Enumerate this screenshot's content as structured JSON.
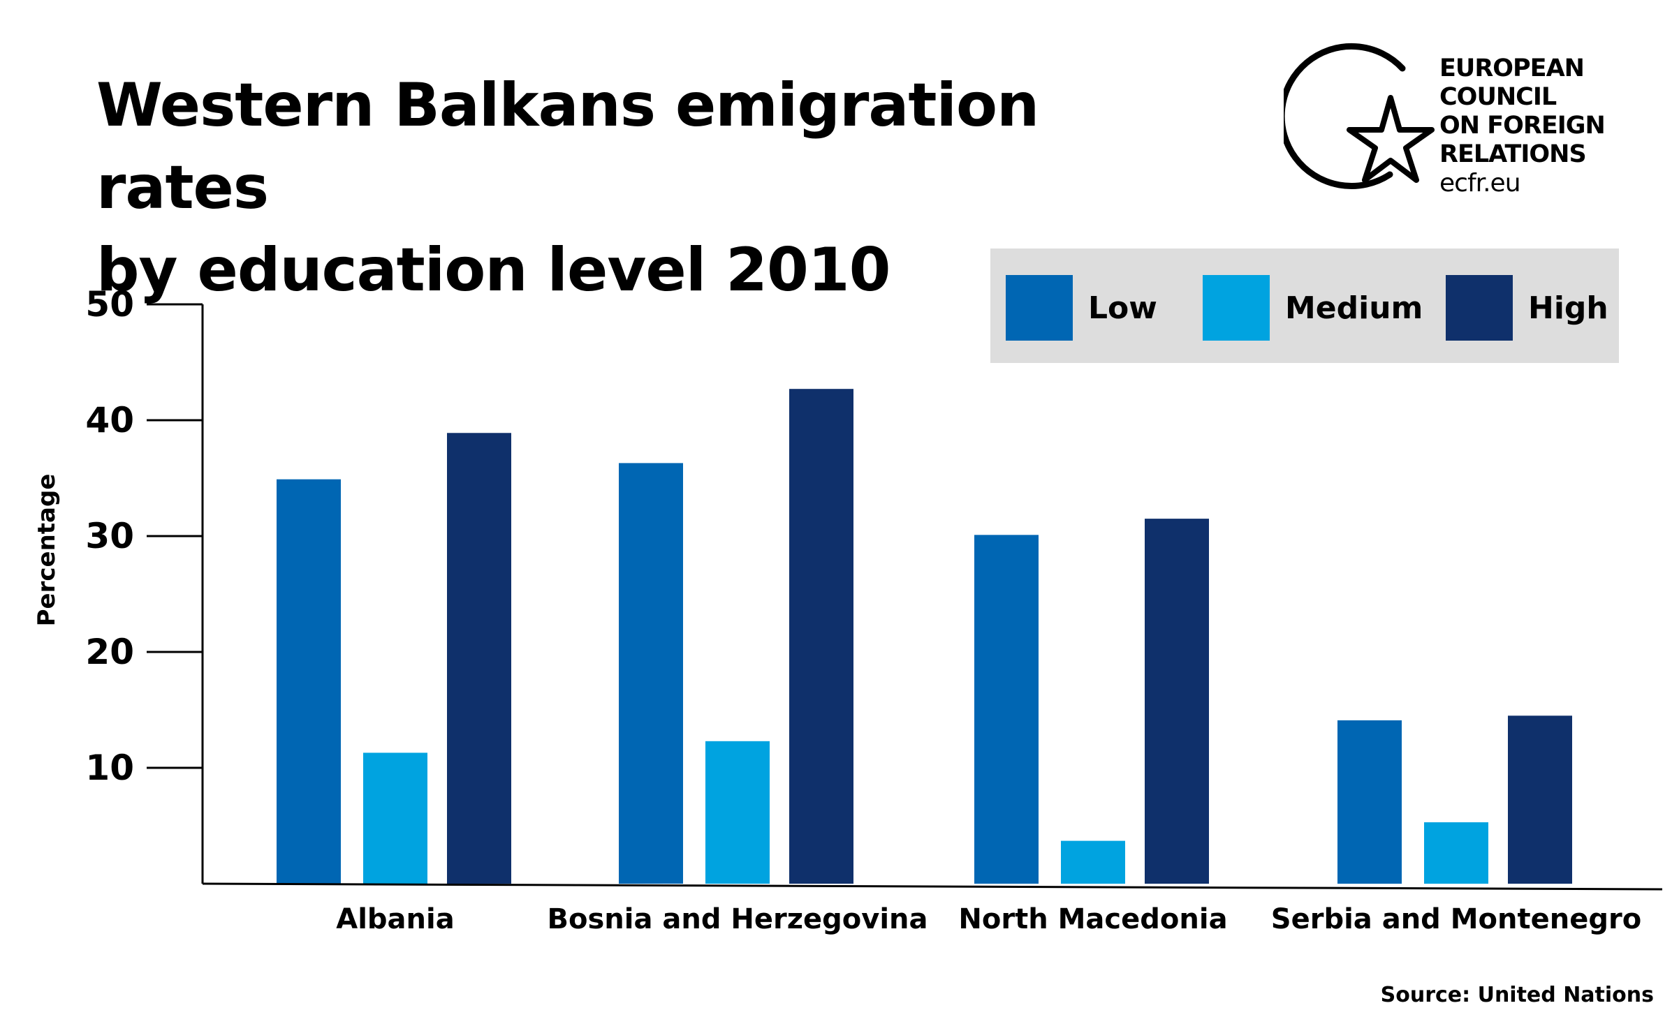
{
  "title": {
    "line1": "Western Balkans emigration rates",
    "line2": "by education level 2010"
  },
  "logo": {
    "lines": [
      "EUROPEAN",
      "COUNCIL",
      "ON FOREIGN",
      "RELATIONS"
    ],
    "url": "ecfr.eu",
    "icon": "star-circle-icon"
  },
  "source": "Source: United Nations",
  "colors": {
    "low": "#0066b3",
    "medium": "#00a3e0",
    "high": "#0f306b",
    "legend_bg": "#dddddd",
    "axis": "#000000"
  },
  "chart_data": {
    "type": "bar",
    "title": "Western Balkans emigration rates by education level 2010",
    "xlabel": "",
    "ylabel": "Percentage",
    "ylim": [
      0,
      50
    ],
    "yticks": [
      10,
      20,
      30,
      40,
      50
    ],
    "categories": [
      "Albania",
      "Bosnia and Herzegovina",
      "North Macedonia",
      "Serbia and Montenegro"
    ],
    "series": [
      {
        "name": "Low",
        "color": "#0066b3",
        "values": [
          34.9,
          36.3,
          30.1,
          14.1
        ]
      },
      {
        "name": "Medium",
        "color": "#00a3e0",
        "values": [
          11.3,
          12.3,
          3.7,
          5.3
        ]
      },
      {
        "name": "High",
        "color": "#0f306b",
        "values": [
          38.9,
          42.7,
          31.5,
          14.5
        ]
      }
    ],
    "legend_position": "top-right",
    "grid": false,
    "source": "Source: United Nations"
  }
}
